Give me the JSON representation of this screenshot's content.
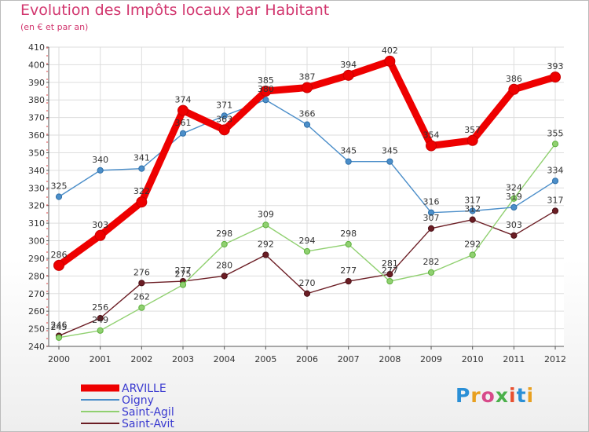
{
  "title": "Evolution des Impôts locaux par Habitant",
  "subtitle": "(en € et par an)",
  "logo_text": "Proxiti",
  "chart_data": {
    "type": "line",
    "title": "Evolution des Impôts locaux par Habitant",
    "ylabel": "(en € et par an)",
    "x": [
      "2000",
      "2001",
      "2002",
      "2003",
      "2004",
      "2005",
      "2006",
      "2007",
      "2008",
      "2009",
      "2010",
      "2011",
      "2012"
    ],
    "ylim": [
      240,
      410
    ],
    "yticks": [
      240,
      250,
      260,
      270,
      280,
      290,
      300,
      310,
      320,
      330,
      340,
      350,
      360,
      370,
      380,
      390,
      400,
      410
    ],
    "grid": true,
    "legend": "bottom-left",
    "series": [
      {
        "name": "ARVILLE",
        "color": "#ee0000",
        "values": [
          286,
          303,
          322,
          374,
          363,
          385,
          387,
          394,
          402,
          354,
          357,
          386,
          393
        ]
      },
      {
        "name": "Oigny",
        "color": "#4b8ec9",
        "values": [
          325,
          340,
          341,
          361,
          371,
          380,
          366,
          345,
          345,
          316,
          317,
          319,
          334
        ]
      },
      {
        "name": "Saint-Agil",
        "color": "#90d070",
        "values": [
          245,
          249,
          262,
          275,
          298,
          309,
          294,
          298,
          277,
          282,
          292,
          324,
          355
        ]
      },
      {
        "name": "Saint-Avit",
        "color": "#6b1d24",
        "values": [
          246,
          256,
          276,
          277,
          280,
          292,
          270,
          277,
          281,
          307,
          312,
          303,
          317
        ]
      }
    ]
  }
}
